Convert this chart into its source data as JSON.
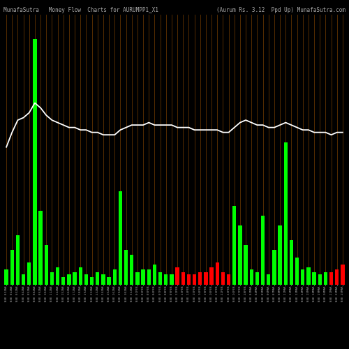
{
  "title_left": "MunafaSutra   Money Flow  Charts for AURUMPP1_X1",
  "title_right": "(Aurum Rs. 3.12  Ppd Up) MunafaSutra.com",
  "background_color": "#000000",
  "bar_color_positive": "#00ff00",
  "bar_color_negative": "#ff0000",
  "line_color": "#ffffff",
  "grid_color": "#6b3800",
  "title_color": "#aaaaaa",
  "title_fontsize": 5.5,
  "label_fontsize": 3.0,
  "labels": [
    "NSE 01JAN",
    "NSE 02JAN",
    "NSE 03JAN",
    "NSE 04JAN",
    "NSE 05JAN",
    "NSE 08JAN",
    "NSE 09JAN",
    "NSE 10JAN",
    "NSE 11JAN",
    "NSE 12JAN",
    "NSE 15JAN",
    "NSE 16JAN",
    "NSE 17JAN",
    "NSE 18JAN",
    "NSE 19JAN",
    "NSE 22JAN",
    "NSE 23JAN",
    "NSE 24JAN",
    "NSE 25JAN",
    "NSE 26JAN",
    "NSE 29JAN",
    "NSE 30JAN",
    "NSE 31JAN",
    "NSE 01FEB",
    "NSE 02FEB",
    "NSE 05FEB",
    "NSE 06FEB",
    "NSE 07FEB",
    "NSE 08FEB",
    "NSE 09FEB",
    "NSE 12FEB",
    "NSE 13FEB",
    "NSE 14FEB",
    "NSE 15FEB",
    "NSE 16FEB",
    "NSE 19FEB",
    "NSE 20FEB",
    "NSE 21FEB",
    "NSE 22FEB",
    "NSE 23FEB",
    "NSE 26FEB",
    "NSE 27FEB",
    "NSE 28FEB",
    "NSE 01MAR",
    "NSE 04MAR",
    "NSE 05MAR",
    "NSE 06MAR",
    "NSE 07MAR",
    "NSE 08MAR",
    "NSE 11MAR",
    "NSE 12MAR",
    "NSE 13MAR",
    "NSE 14MAR",
    "NSE 15MAR",
    "NSE 18MAR",
    "NSE 19MAR",
    "NSE 20MAR",
    "NSE 21MAR",
    "NSE 22MAR",
    "NSE 25MAR"
  ],
  "bar_heights": [
    6,
    14,
    20,
    4,
    9,
    100,
    30,
    16,
    5,
    7,
    3,
    4,
    5,
    7,
    4,
    3,
    5,
    4,
    3,
    6,
    38,
    14,
    12,
    5,
    6,
    6,
    8,
    5,
    4,
    4,
    7,
    5,
    4,
    4,
    5,
    5,
    7,
    9,
    5,
    4,
    32,
    24,
    16,
    6,
    5,
    28,
    4,
    14,
    24,
    58,
    18,
    11,
    6,
    7,
    5,
    4,
    5,
    5,
    6,
    8
  ],
  "bar_signs": [
    1,
    1,
    1,
    1,
    1,
    1,
    1,
    1,
    1,
    1,
    1,
    1,
    1,
    1,
    1,
    1,
    1,
    1,
    1,
    1,
    1,
    1,
    1,
    1,
    1,
    1,
    1,
    1,
    1,
    1,
    -1,
    -1,
    -1,
    -1,
    -1,
    -1,
    -1,
    -1,
    -1,
    -1,
    1,
    1,
    1,
    1,
    1,
    1,
    1,
    1,
    1,
    1,
    1,
    1,
    1,
    1,
    1,
    1,
    1,
    -1,
    -1,
    -1
  ],
  "line_values": [
    56,
    62,
    67,
    68,
    70,
    74,
    72,
    69,
    67,
    66,
    65,
    64,
    64,
    63,
    63,
    62,
    62,
    61,
    61,
    61,
    63,
    64,
    65,
    65,
    65,
    66,
    65,
    65,
    65,
    65,
    64,
    64,
    64,
    63,
    63,
    63,
    63,
    63,
    62,
    62,
    64,
    66,
    67,
    66,
    65,
    65,
    64,
    64,
    65,
    66,
    65,
    64,
    63,
    63,
    62,
    62,
    62,
    61,
    62,
    62
  ],
  "ylim_max": 110
}
